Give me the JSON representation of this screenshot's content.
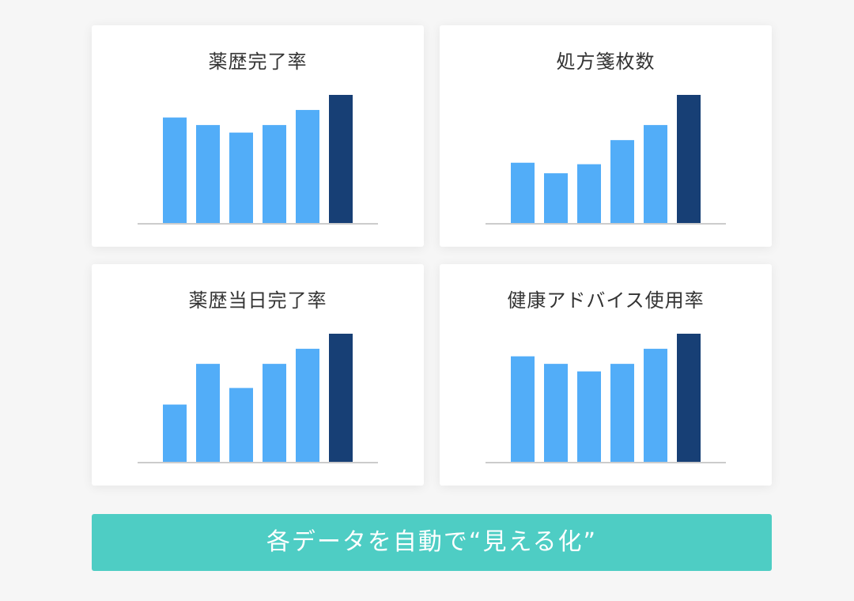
{
  "colors": {
    "bar": "#52adf8",
    "highlight_bar": "#173f75",
    "baseline": "#cccccc",
    "banner": "#4ecdc4"
  },
  "chart_data": [
    {
      "type": "bar",
      "title": "薬歴完了率",
      "values": [
        70,
        65,
        60,
        65,
        75,
        85
      ],
      "ylim": [
        0,
        85
      ],
      "highlight_index": 5
    },
    {
      "type": "bar",
      "title": "処方箋枚数",
      "values": [
        40,
        33,
        39,
        55,
        65,
        85
      ],
      "ylim": [
        0,
        85
      ],
      "highlight_index": 5
    },
    {
      "type": "bar",
      "title": "薬歴当日完了率",
      "values": [
        38,
        65,
        49,
        65,
        75,
        85
      ],
      "ylim": [
        0,
        85
      ],
      "highlight_index": 5
    },
    {
      "type": "bar",
      "title": "健康アドバイス使用率",
      "values": [
        70,
        65,
        60,
        65,
        75,
        85
      ],
      "ylim": [
        0,
        85
      ],
      "highlight_index": 5
    }
  ],
  "banner": {
    "text": "各データを自動で“見える化”"
  }
}
